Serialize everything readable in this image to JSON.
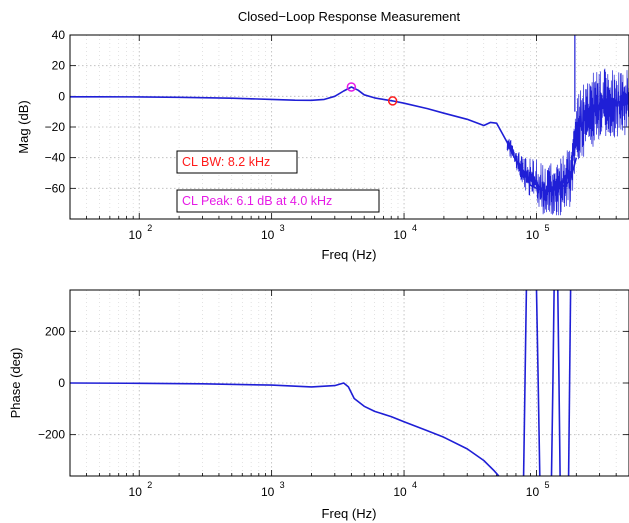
{
  "chart_data": [
    {
      "type": "line",
      "title": "Closed−Loop Response Measurement",
      "xlabel": "Freq (Hz)",
      "ylabel": "Mag (dB)",
      "xscale": "log",
      "xlim": [
        30,
        500000
      ],
      "ylim": [
        -80,
        40
      ],
      "grid": true,
      "x_ticks": [
        "10",
        "10",
        "10",
        "10"
      ],
      "x_tick_exponents": [
        "2",
        "3",
        "4",
        "5"
      ],
      "x_tick_values": [
        100,
        1000,
        10000,
        100000
      ],
      "y_ticks": [
        "40",
        "20",
        "0",
        "−20",
        "−40",
        "−60"
      ],
      "y_tick_values": [
        40,
        20,
        0,
        -20,
        -40,
        -60
      ],
      "series": [
        {
          "color": "#1f1fd6",
          "x": [
            30,
            50,
            100,
            200,
            500,
            1000,
            1500,
            2000,
            2500,
            3000,
            3500,
            4000,
            4500,
            5000,
            6000,
            7000,
            8200,
            10000,
            15000,
            20000,
            30000,
            40000,
            45000,
            50000,
            55000,
            60000,
            70000,
            80000,
            90000,
            100000,
            120000,
            150000,
            180000,
            200000
          ],
          "y": [
            -0.3,
            -0.3,
            -0.4,
            -0.6,
            -1.2,
            -2.0,
            -2.5,
            -2.6,
            -2.0,
            0.0,
            3.5,
            6.1,
            4.0,
            1.0,
            -1.0,
            -2.0,
            -3.0,
            -4.5,
            -8.0,
            -11.0,
            -15.0,
            -19.0,
            -17.0,
            -17.5,
            -24.0,
            -30.0,
            -42.0,
            -50.0,
            -58.0,
            -60.0,
            -62.0,
            -60.0,
            -55.0,
            -40.0
          ],
          "noise_band": {
            "x": [
              60000,
              80000,
              100000,
              120000,
              150000,
              180000,
              200000,
              250000,
              300000,
              400000,
              500000
            ],
            "y_min": [
              -35,
              -60,
              -75,
              -78,
              -78,
              -72,
              -50,
              -35,
              -30,
              -28,
              -25
            ],
            "y_max": [
              -25,
              -40,
              -40,
              -45,
              -40,
              -30,
              0,
              15,
              18,
              20,
              20
            ]
          }
        }
      ],
      "annotations": [
        {
          "text": "CL BW: 8.2 kHz",
          "color": "#ff1a1a",
          "x": 8200,
          "y": -3.0
        },
        {
          "text": "CL Peak: 6.1 dB at 4.0 kHz",
          "color": "#e61ae6",
          "x": 4000,
          "y": 6.1
        }
      ]
    },
    {
      "type": "line",
      "title": "",
      "xlabel": "Freq (Hz)",
      "ylabel": "Phase (deg)",
      "xscale": "log",
      "xlim": [
        30,
        500000
      ],
      "ylim": [
        -360,
        360
      ],
      "grid": true,
      "x_ticks": [
        "10",
        "10",
        "10",
        "10"
      ],
      "x_tick_exponents": [
        "2",
        "3",
        "4",
        "5"
      ],
      "x_tick_values": [
        100,
        1000,
        10000,
        100000
      ],
      "y_ticks": [
        "200",
        "0",
        "−200"
      ],
      "y_tick_values": [
        200,
        0,
        -200
      ],
      "series": [
        {
          "color": "#1f1fd6",
          "x": [
            30,
            100,
            300,
            1000,
            2000,
            3000,
            3500,
            3800,
            4200,
            5000,
            6000,
            8000,
            10000,
            15000,
            20000,
            30000,
            40000,
            48000,
            52000
          ],
          "y": [
            0,
            -1,
            -3,
            -8,
            -15,
            -10,
            0,
            -15,
            -60,
            -90,
            -110,
            -130,
            -150,
            -185,
            -210,
            -255,
            -300,
            -340,
            -360
          ],
          "wrap_segments": [
            {
              "x": [
                80000,
                82000,
                84000
              ],
              "y": [
                -360,
                0,
                360
              ]
            },
            {
              "x": [
                100000,
                103000,
                106000
              ],
              "y": [
                360,
                0,
                -360
              ]
            },
            {
              "x": [
                130000,
                133000,
                136000
              ],
              "y": [
                -360,
                0,
                360
              ]
            },
            {
              "x": [
                145000,
                148000,
                151000
              ],
              "y": [
                360,
                0,
                -360
              ]
            },
            {
              "x": [
                175000,
                178000,
                181000
              ],
              "y": [
                -360,
                0,
                360
              ]
            }
          ]
        }
      ]
    }
  ]
}
